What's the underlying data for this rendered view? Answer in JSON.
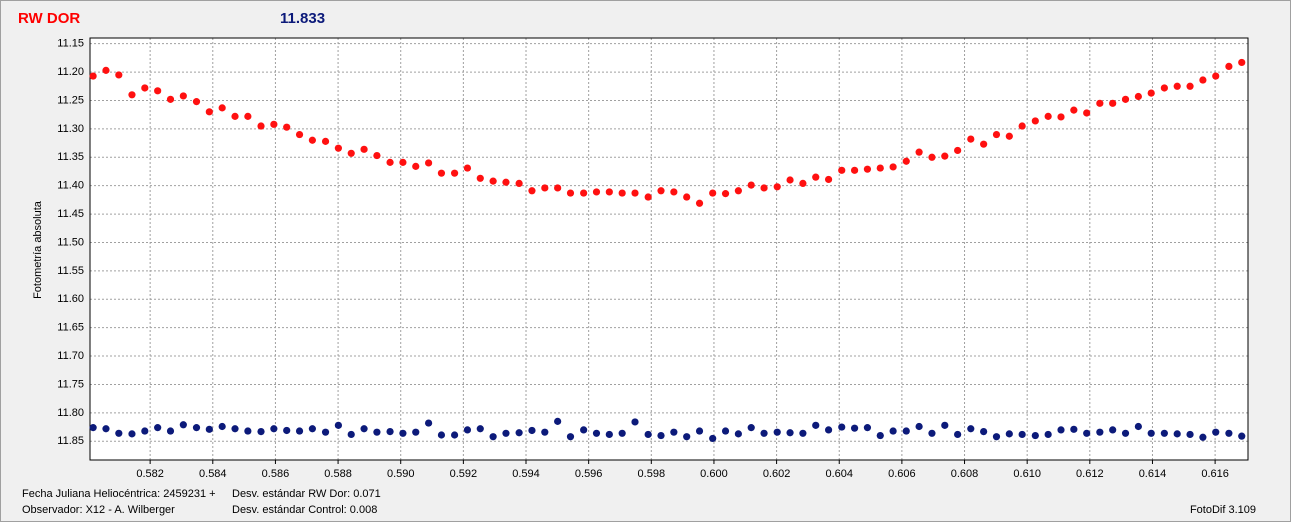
{
  "chart_data": {
    "type": "scatter",
    "title": "RW DOR",
    "subtitle": "11.833",
    "ylabel": "Fotometría absoluta",
    "notes": [
      "Fecha Juliana Heliocéntrica: 2459231 +",
      "Desv. estándar RW Dor: 0.071",
      "Observador: X12 - A. Wilberger",
      "Desv. estándar Control: 0.008",
      "FotoDif 3.109"
    ],
    "grid": true,
    "xlim": [
      0.58008,
      0.61705
    ],
    "ylim": [
      11.883,
      11.14
    ],
    "xticks": [
      0.582,
      0.584,
      0.586,
      0.588,
      {
        "value": 0.59,
        "label": "0.590"
      },
      0.592,
      0.594,
      0.596,
      0.598,
      {
        "value": 0.6,
        "label": "0.600"
      },
      0.602,
      0.604,
      0.606,
      0.608,
      {
        "value": 0.61,
        "label": "0.610"
      },
      0.612,
      0.614,
      0.616
    ],
    "yticks": [
      11.15,
      {
        "value": 11.2,
        "label": "11.20"
      },
      11.25,
      {
        "value": 11.3,
        "label": "11.30"
      },
      11.35,
      {
        "value": 11.4,
        "label": "11.40"
      },
      11.45,
      {
        "value": 11.5,
        "label": "11.50"
      },
      11.55,
      {
        "value": 11.6,
        "label": "11.60"
      },
      11.65,
      {
        "value": 11.7,
        "label": "11.70"
      },
      11.75,
      {
        "value": 11.8,
        "label": "11.80"
      },
      11.85
    ],
    "x": [
      0.58018,
      0.58059,
      0.581,
      0.58142,
      0.58183,
      0.58224,
      0.58265,
      0.58306,
      0.58348,
      0.58389,
      0.5843,
      0.58471,
      0.58512,
      0.58554,
      0.58595,
      0.58636,
      0.58677,
      0.58718,
      0.5876,
      0.58801,
      0.58842,
      0.58883,
      0.58924,
      0.58966,
      0.59007,
      0.59048,
      0.59089,
      0.5913,
      0.59172,
      0.59213,
      0.59254,
      0.59295,
      0.59336,
      0.59378,
      0.59419,
      0.5946,
      0.59501,
      0.59542,
      0.59584,
      0.59625,
      0.59666,
      0.59707,
      0.59748,
      0.5979,
      0.59831,
      0.59872,
      0.59913,
      0.59954,
      0.59996,
      0.60037,
      0.60078,
      0.60119,
      0.6016,
      0.60202,
      0.60243,
      0.60284,
      0.60325,
      0.60366,
      0.60408,
      0.60449,
      0.6049,
      0.60531,
      0.60572,
      0.60614,
      0.60655,
      0.60696,
      0.60737,
      0.60778,
      0.6082,
      0.60861,
      0.60902,
      0.60943,
      0.60984,
      0.61026,
      0.61067,
      0.61108,
      0.61149,
      0.6119,
      0.61232,
      0.61273,
      0.61314,
      0.61355,
      0.61396,
      0.61438,
      0.61479,
      0.6152,
      0.61561,
      0.61602,
      0.61644,
      0.61685
    ],
    "series": [
      {
        "color": "#ff1010",
        "values": [
          11.207,
          11.197,
          11.205,
          11.24,
          11.228,
          11.233,
          11.248,
          11.242,
          11.252,
          11.27,
          11.263,
          11.278,
          11.278,
          11.295,
          11.292,
          11.297,
          11.31,
          11.32,
          11.322,
          11.334,
          11.343,
          11.336,
          11.347,
          11.359,
          11.359,
          11.366,
          11.36,
          11.378,
          11.378,
          11.369,
          11.387,
          11.392,
          11.394,
          11.396,
          11.409,
          11.404,
          11.404,
          11.413,
          11.413,
          11.411,
          11.411,
          11.413,
          11.413,
          11.42,
          11.409,
          11.411,
          11.42,
          11.431,
          11.413,
          11.414,
          11.409,
          11.399,
          11.404,
          11.402,
          11.39,
          11.396,
          11.385,
          11.389,
          11.373,
          11.373,
          11.371,
          11.369,
          11.367,
          11.357,
          11.341,
          11.35,
          11.348,
          11.338,
          11.318,
          11.327,
          11.31,
          11.313,
          11.295,
          11.286,
          11.278,
          11.279,
          11.267,
          11.272,
          11.255,
          11.255,
          11.248,
          11.243,
          11.237,
          11.228,
          11.225,
          11.225,
          11.214,
          11.207,
          11.19,
          11.183
        ]
      },
      {
        "color": "#0c1a7a",
        "values": [
          11.826,
          11.828,
          11.836,
          11.837,
          11.832,
          11.826,
          11.832,
          11.821,
          11.826,
          11.829,
          11.824,
          11.828,
          11.832,
          11.833,
          11.828,
          11.831,
          11.832,
          11.828,
          11.834,
          11.822,
          11.838,
          11.828,
          11.834,
          11.833,
          11.836,
          11.834,
          11.818,
          11.839,
          11.839,
          11.83,
          11.828,
          11.842,
          11.836,
          11.835,
          11.831,
          11.834,
          11.815,
          11.842,
          11.83,
          11.836,
          11.838,
          11.836,
          11.816,
          11.838,
          11.84,
          11.834,
          11.842,
          11.832,
          11.845,
          11.832,
          11.837,
          11.826,
          11.836,
          11.834,
          11.835,
          11.836,
          11.822,
          11.83,
          11.825,
          11.827,
          11.826,
          11.84,
          11.832,
          11.832,
          11.824,
          11.836,
          11.822,
          11.838,
          11.828,
          11.833,
          11.842,
          11.837,
          11.838,
          11.84,
          11.838,
          11.83,
          11.829,
          11.836,
          11.834,
          11.83,
          11.836,
          11.824,
          11.836,
          11.836,
          11.837,
          11.838,
          11.843,
          11.834,
          11.836,
          11.841
        ]
      }
    ]
  }
}
